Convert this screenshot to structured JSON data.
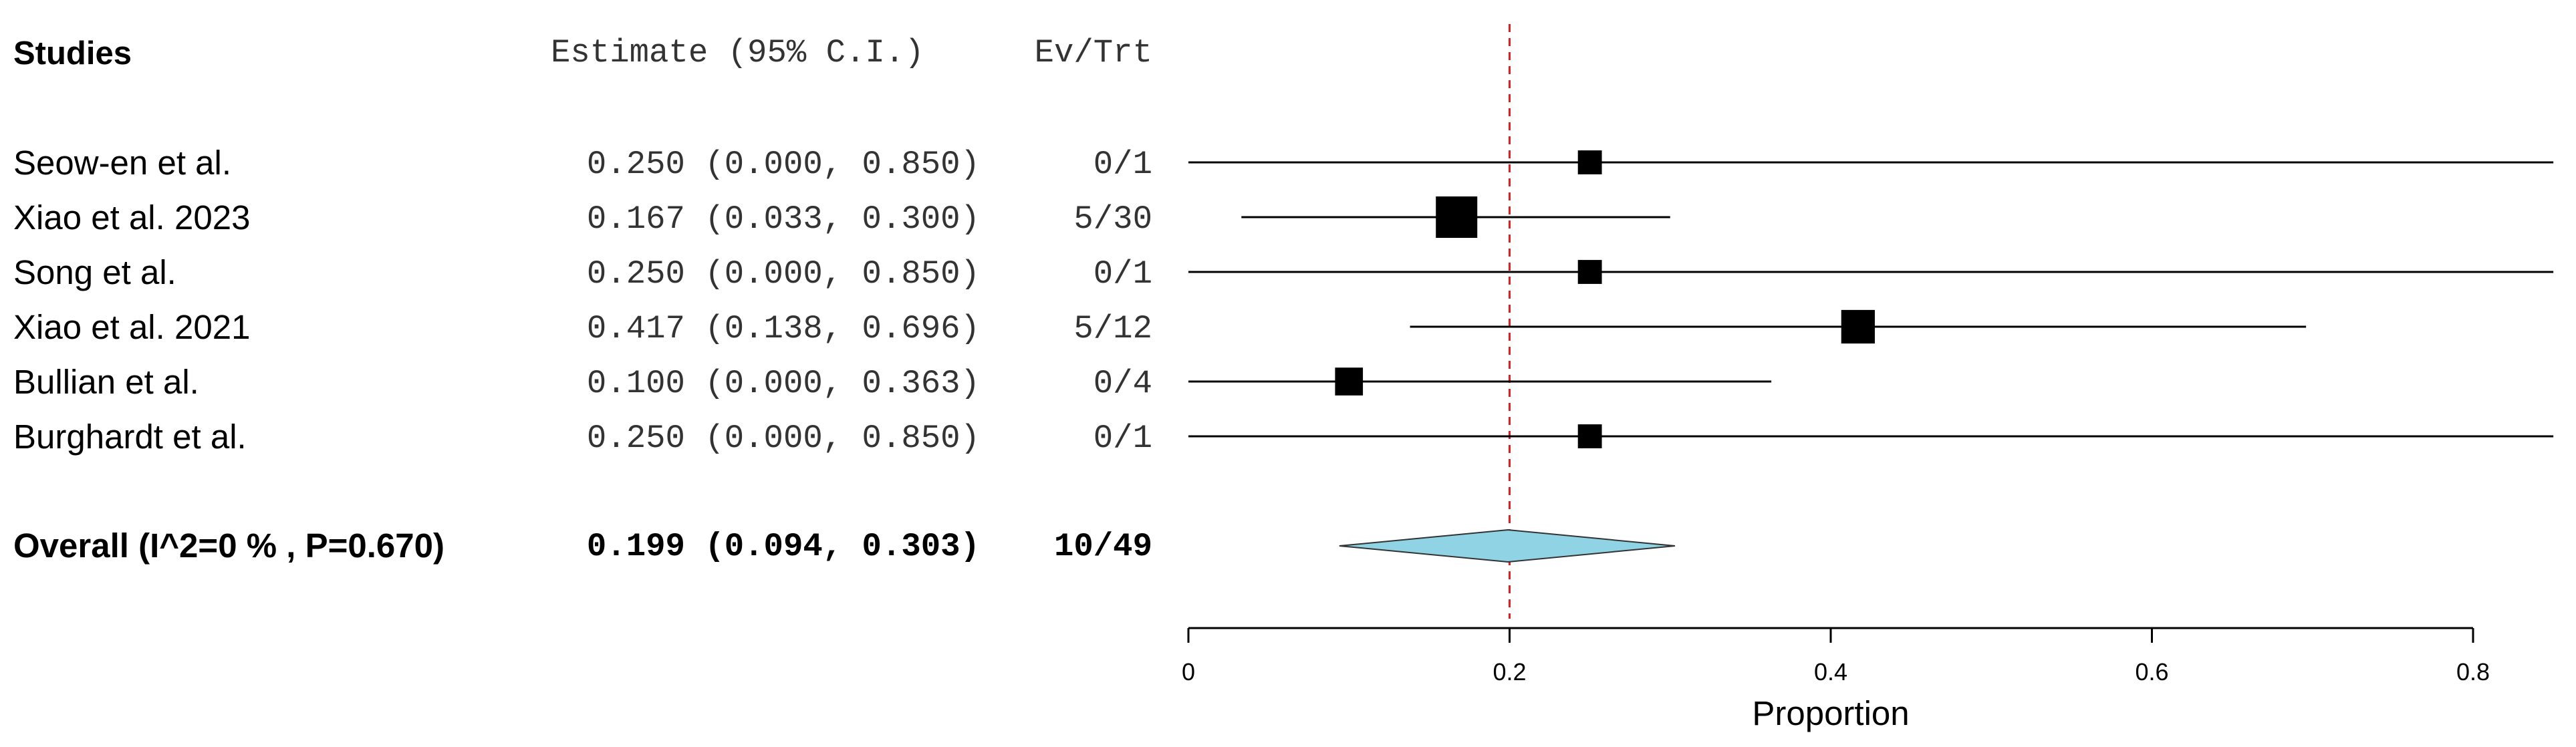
{
  "chart_data": {
    "type": "forest",
    "xlabel": "Proportion",
    "xlim": [
      0,
      0.8
    ],
    "xticks": [
      0,
      0.2,
      0.4,
      0.6,
      0.8
    ],
    "xtick_labels": [
      "0",
      "0.2",
      "0.4",
      "0.6",
      "0.8"
    ],
    "reference_line": 0.2,
    "headers": {
      "studies": "Studies",
      "estimate": "Estimate (95% C.I.)",
      "events": "Ev/Trt"
    },
    "studies": [
      {
        "label": "Seow-en et al.",
        "estimate": 0.25,
        "lower": 0.0,
        "upper": 0.85,
        "estimate_text": "0.250 (0.000, 0.850)",
        "events_text": "0/1",
        "weight": 1
      },
      {
        "label": " Xiao et al. 2023",
        "estimate": 0.167,
        "lower": 0.033,
        "upper": 0.3,
        "estimate_text": "0.167 (0.033, 0.300)",
        "events_text": "5/30",
        "weight": 30
      },
      {
        "label": "Song et al.",
        "estimate": 0.25,
        "lower": 0.0,
        "upper": 0.85,
        "estimate_text": "0.250 (0.000, 0.850)",
        "events_text": "0/1",
        "weight": 1
      },
      {
        "label": "Xiao et al. 2021",
        "estimate": 0.417,
        "lower": 0.138,
        "upper": 0.696,
        "estimate_text": "0.417 (0.138, 0.696)",
        "events_text": "5/12",
        "weight": 12
      },
      {
        "label": "Bullian et al.",
        "estimate": 0.1,
        "lower": 0.0,
        "upper": 0.363,
        "estimate_text": "0.100 (0.000, 0.363)",
        "events_text": "0/4",
        "weight": 4
      },
      {
        "label": "Burghardt et al.",
        "estimate": 0.25,
        "lower": 0.0,
        "upper": 0.85,
        "estimate_text": "0.250 (0.000, 0.850)",
        "events_text": "0/1",
        "weight": 1
      }
    ],
    "overall": {
      "label": "Overall (I^2=0 % , P=0.670)",
      "estimate": 0.199,
      "lower": 0.094,
      "upper": 0.303,
      "estimate_text": "0.199 (0.094, 0.303)",
      "events_text": "10/49"
    },
    "colors": {
      "diamond_fill": "#8fd3e4",
      "reference_line": "#e02020",
      "marker": "#000000"
    }
  }
}
